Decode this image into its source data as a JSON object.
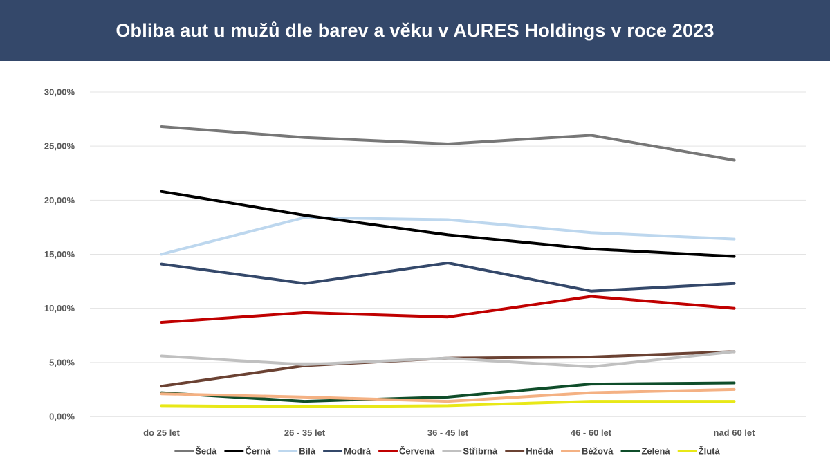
{
  "header": {
    "title": "Obliba aut u mužů dle barev a věku v AURES Holdings v roce 2023"
  },
  "chart_data": {
    "type": "line",
    "title": "Obliba aut u mužů dle barev a věku v AURES Holdings v roce 2023",
    "categories": [
      "do 25 let",
      "26 - 35 let",
      "36 - 45 let",
      "46 - 60 let",
      "nad 60 let"
    ],
    "ylim": [
      0,
      30
    ],
    "yticks": [
      0,
      5,
      10,
      15,
      20,
      25,
      30
    ],
    "ytick_labels": [
      "0,00%",
      "5,00%",
      "10,00%",
      "15,00%",
      "20,00%",
      "25,00%",
      "30,00%"
    ],
    "grid": true,
    "legend": "bottom",
    "series": [
      {
        "name": "Šedá",
        "color": "#777777",
        "values": [
          26.8,
          25.8,
          25.2,
          26.0,
          23.7
        ]
      },
      {
        "name": "Černá",
        "color": "#000000",
        "values": [
          20.8,
          18.6,
          16.8,
          15.5,
          14.8
        ]
      },
      {
        "name": "Bílá",
        "color": "#bdd7ee",
        "values": [
          15.0,
          18.4,
          18.2,
          17.0,
          16.4
        ]
      },
      {
        "name": "Modrá",
        "color": "#34486a",
        "values": [
          14.1,
          12.3,
          14.2,
          11.6,
          12.3
        ]
      },
      {
        "name": "Červená",
        "color": "#c00000",
        "values": [
          8.7,
          9.6,
          9.2,
          11.1,
          10.0
        ]
      },
      {
        "name": "Stříbrná",
        "color": "#c0c0c0",
        "values": [
          5.6,
          4.8,
          5.4,
          4.6,
          6.0
        ]
      },
      {
        "name": "Hnědá",
        "color": "#6b4233",
        "values": [
          2.8,
          4.7,
          5.4,
          5.5,
          6.0
        ]
      },
      {
        "name": "Béžová",
        "color": "#f4b183",
        "values": [
          2.1,
          1.8,
          1.4,
          2.2,
          2.5
        ]
      },
      {
        "name": "Zelená",
        "color": "#0f4d2a",
        "values": [
          2.2,
          1.4,
          1.8,
          3.0,
          3.1
        ]
      },
      {
        "name": "Žlutá",
        "color": "#e8e817",
        "values": [
          1.0,
          0.9,
          1.0,
          1.4,
          1.4
        ]
      }
    ]
  }
}
